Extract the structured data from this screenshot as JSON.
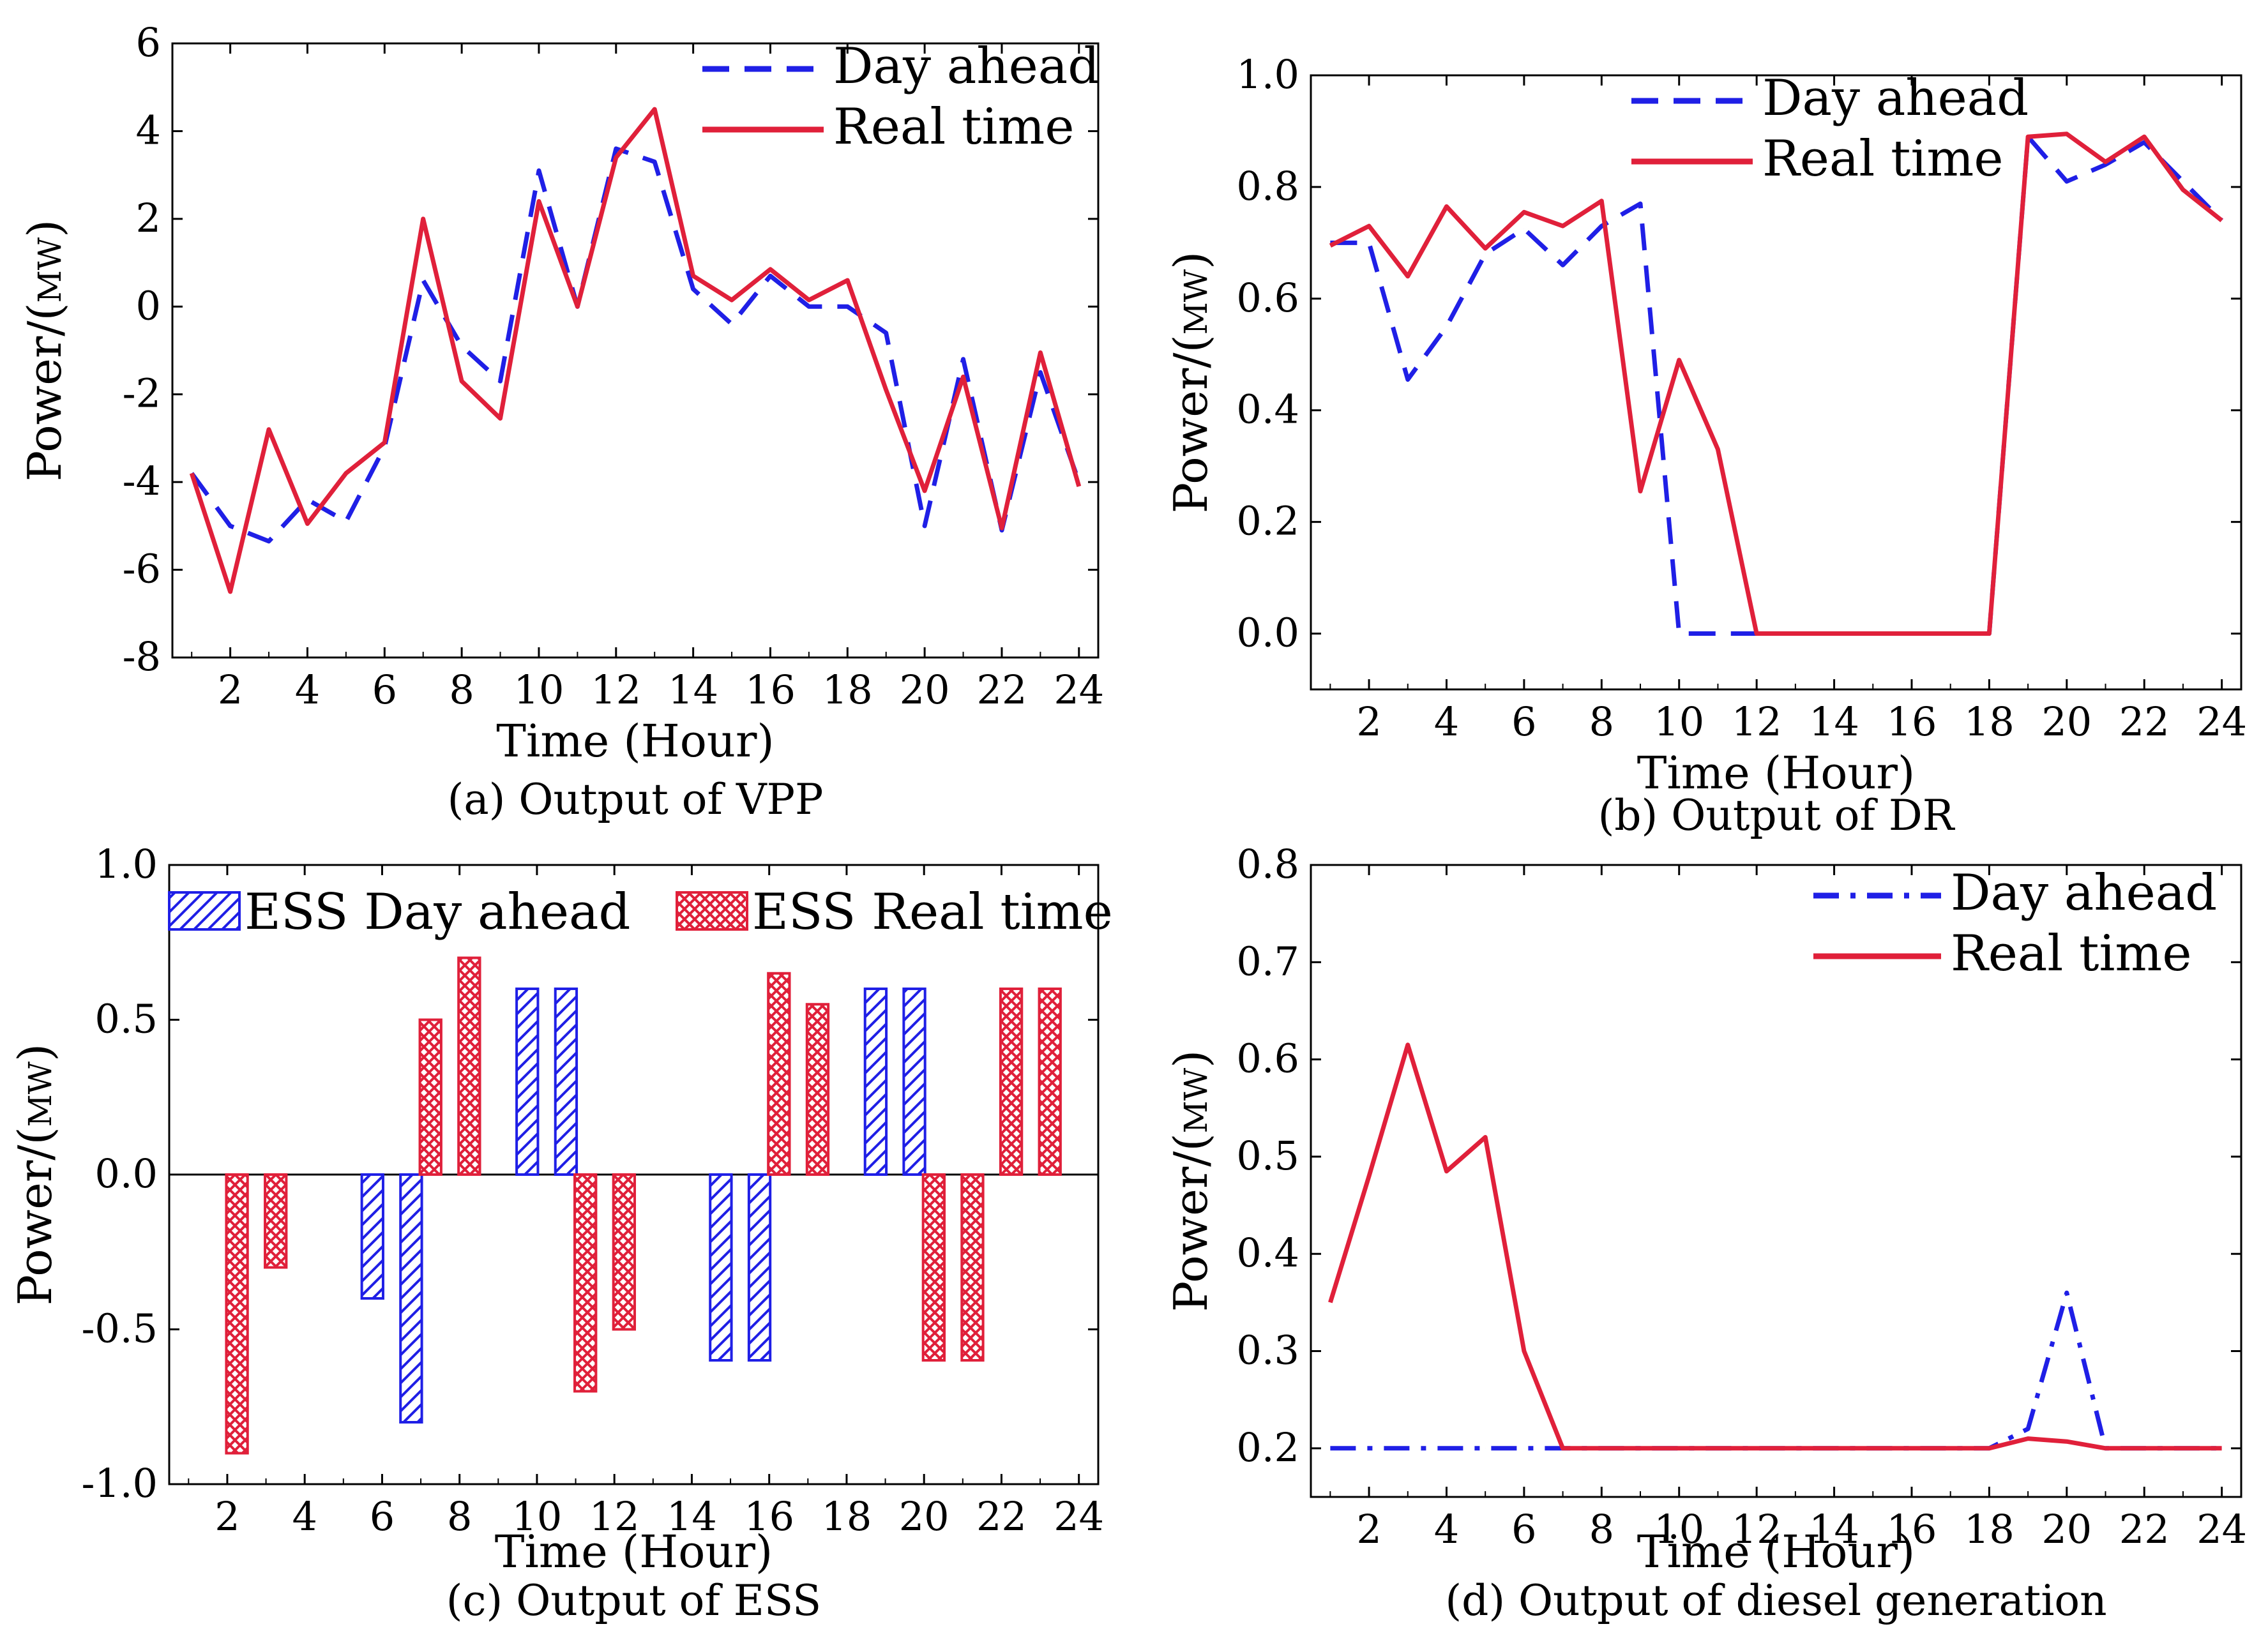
{
  "colors": {
    "day_ahead": "#1f1fe6",
    "real_time": "#e0203a",
    "axis": "#000000"
  },
  "chart_data": [
    {
      "id": "a",
      "type": "line",
      "caption": "(a) Output of VPP",
      "xlabel": "Time (Hour)",
      "ylabel_main": "Power/(",
      "ylabel_unit": "MW",
      "ylabel_close": ")",
      "xlim": [
        0.5,
        24.5
      ],
      "ylim": [
        -8,
        6
      ],
      "xticks": [
        "2",
        "4",
        "6",
        "8",
        "10",
        "12",
        "14",
        "16",
        "18",
        "20",
        "22",
        "24"
      ],
      "yticks": [
        "-8",
        "-6",
        "-4",
        "-2",
        "0",
        "2",
        "4",
        "6"
      ],
      "legend": [
        "Day ahead",
        "Real time"
      ],
      "x": [
        1,
        2,
        3,
        4,
        5,
        6,
        7,
        8,
        9,
        10,
        11,
        12,
        13,
        14,
        15,
        16,
        17,
        18,
        19,
        20,
        21,
        22,
        23,
        24
      ],
      "series": [
        {
          "name": "Day ahead",
          "style": "dashed",
          "values": [
            -3.8,
            -5.0,
            -5.35,
            -4.4,
            -4.9,
            -3.2,
            0.6,
            -0.9,
            -1.7,
            3.1,
            0.0,
            3.6,
            3.3,
            0.4,
            -0.4,
            0.7,
            0.0,
            0.0,
            -0.6,
            -5.0,
            -1.2,
            -5.1,
            -1.5,
            -4.0
          ]
        },
        {
          "name": "Real time",
          "style": "solid",
          "values": [
            -3.8,
            -6.5,
            -2.8,
            -4.95,
            -3.8,
            -3.1,
            2.0,
            -1.7,
            -2.55,
            2.4,
            0.0,
            3.4,
            4.5,
            0.7,
            0.15,
            0.85,
            0.15,
            0.6,
            -1.9,
            -4.2,
            -1.6,
            -5.05,
            -1.05,
            -4.1
          ]
        }
      ]
    },
    {
      "id": "b",
      "type": "line",
      "caption": "(b) Output of DR",
      "xlabel": "Time (Hour)",
      "ylabel_main": "Power/(",
      "ylabel_unit": "MW",
      "ylabel_close": ")",
      "xlim": [
        0.5,
        24.5
      ],
      "ylim": [
        -0.1,
        1.0
      ],
      "xticks": [
        "2",
        "4",
        "6",
        "8",
        "10",
        "12",
        "14",
        "16",
        "18",
        "20",
        "22",
        "24"
      ],
      "yticks": [
        "0.0",
        "0.2",
        "0.4",
        "0.6",
        "0.8",
        "1.0"
      ],
      "legend": [
        "Day ahead",
        "Real time"
      ],
      "x": [
        1,
        2,
        3,
        4,
        5,
        6,
        7,
        8,
        9,
        10,
        11,
        12,
        13,
        14,
        15,
        16,
        17,
        18,
        19,
        20,
        21,
        22,
        23,
        24
      ],
      "series": [
        {
          "name": "Day ahead",
          "style": "dashed",
          "values": [
            0.7,
            0.7,
            0.455,
            0.55,
            0.68,
            0.725,
            0.66,
            0.73,
            0.77,
            0.0,
            0.0,
            0.0,
            0.0,
            0.0,
            0.0,
            0.0,
            0.0,
            0.0,
            0.89,
            0.81,
            0.84,
            0.88,
            0.81,
            0.74
          ]
        },
        {
          "name": "Real time",
          "style": "solid",
          "values": [
            0.695,
            0.73,
            0.64,
            0.765,
            0.69,
            0.755,
            0.73,
            0.775,
            0.255,
            0.49,
            0.33,
            0.0,
            0.0,
            0.0,
            0.0,
            0.0,
            0.0,
            0.0,
            0.89,
            0.895,
            0.845,
            0.89,
            0.795,
            0.74
          ]
        }
      ]
    },
    {
      "id": "c",
      "type": "bar",
      "caption": "(c) Output of ESS",
      "xlabel": "Time (Hour)",
      "ylabel_main": "Power/(",
      "ylabel_unit": "MW",
      "ylabel_close": ")",
      "xlim": [
        0.5,
        24.5
      ],
      "ylim": [
        -1.0,
        1.0
      ],
      "xticks": [
        "2",
        "4",
        "6",
        "8",
        "10",
        "12",
        "14",
        "16",
        "18",
        "20",
        "22",
        "24"
      ],
      "yticks": [
        "-1.0",
        "-0.5",
        "0.0",
        "0.5",
        "1.0"
      ],
      "legend": [
        "ESS Day ahead",
        "ESS Real time"
      ],
      "x": [
        1,
        2,
        3,
        4,
        5,
        6,
        7,
        8,
        9,
        10,
        11,
        12,
        13,
        14,
        15,
        16,
        17,
        18,
        19,
        20,
        21,
        22,
        23,
        24
      ],
      "series": [
        {
          "name": "ESS Day ahead",
          "pattern": "hatch",
          "values": [
            0,
            0,
            0,
            0,
            0,
            -0.4,
            -0.8,
            0,
            0,
            0.6,
            0.6,
            0,
            0,
            0,
            -0.6,
            -0.6,
            0,
            0,
            0.6,
            0.6,
            0,
            0,
            0,
            0
          ]
        },
        {
          "name": "ESS Real time",
          "pattern": "crosshatch",
          "values": [
            0,
            -0.9,
            -0.3,
            0,
            0,
            0,
            0.5,
            0.7,
            0,
            0,
            -0.7,
            -0.5,
            0,
            0,
            0,
            0.65,
            0.55,
            0,
            0,
            -0.6,
            -0.6,
            0.6,
            0.6,
            0
          ]
        }
      ]
    },
    {
      "id": "d",
      "type": "line",
      "caption": "(d) Output of diesel generation",
      "xlabel": "Time (Hour)",
      "ylabel_main": "Power/(",
      "ylabel_unit": "MW",
      "ylabel_close": ")",
      "xlim": [
        0.5,
        24.5
      ],
      "ylim": [
        0.15,
        0.8
      ],
      "xticks": [
        "2",
        "4",
        "6",
        "8",
        "10",
        "12",
        "14",
        "16",
        "18",
        "20",
        "22",
        "24"
      ],
      "yticks": [
        "0.2",
        "0.3",
        "0.4",
        "0.5",
        "0.6",
        "0.7",
        "0.8"
      ],
      "legend": [
        "Day ahead",
        "Real time"
      ],
      "x": [
        1,
        2,
        3,
        4,
        5,
        6,
        7,
        8,
        9,
        10,
        11,
        12,
        13,
        14,
        15,
        16,
        17,
        18,
        19,
        20,
        21,
        22,
        23,
        24
      ],
      "series": [
        {
          "name": "Day ahead",
          "style": "dashdot",
          "values": [
            0.2,
            0.2,
            0.2,
            0.2,
            0.2,
            0.2,
            0.2,
            0.2,
            0.2,
            0.2,
            0.2,
            0.2,
            0.2,
            0.2,
            0.2,
            0.2,
            0.2,
            0.2,
            0.22,
            0.36,
            0.2,
            0.2,
            0.2,
            0.2
          ]
        },
        {
          "name": "Real time",
          "style": "solid",
          "values": [
            0.35,
            0.48,
            0.615,
            0.485,
            0.52,
            0.3,
            0.2,
            0.2,
            0.2,
            0.2,
            0.2,
            0.2,
            0.2,
            0.2,
            0.2,
            0.2,
            0.2,
            0.2,
            0.21,
            0.207,
            0.2,
            0.2,
            0.2,
            0.2
          ]
        }
      ]
    }
  ]
}
